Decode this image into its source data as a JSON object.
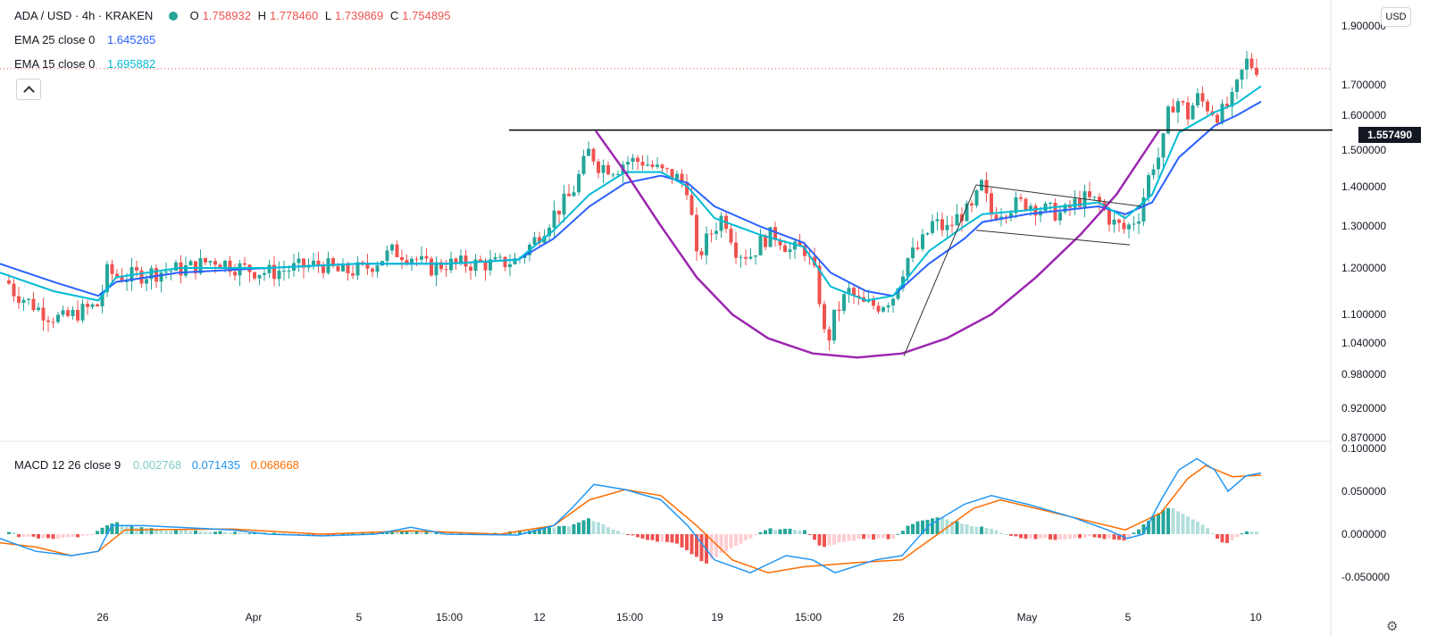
{
  "header": {
    "symbol": "ADA / USD · 4h · KRAKEN",
    "open_label": "O",
    "open": "1.758932",
    "high_label": "H",
    "high": "1.778460",
    "low_label": "L",
    "low": "1.739869",
    "close_label": "C",
    "close": "1.754895",
    "status_color": "#26a69a"
  },
  "indicators": {
    "ema25": {
      "label": "EMA 25 close 0",
      "value": "1.645265",
      "color": "#2962ff"
    },
    "ema15": {
      "label": "EMA 15 close 0",
      "value": "1.695882",
      "color": "#00bcd4"
    },
    "macd": {
      "label": "MACD 12 26 close 9",
      "hist": "0.002768",
      "macd": "0.071435",
      "signal": "0.068668",
      "hist_color": "#80cbc4",
      "macd_color": "#2196f3",
      "signal_color": "#ff6d00"
    }
  },
  "axis": {
    "currency": "USD",
    "current_price": "1.557490"
  },
  "icons": {
    "collapse": "chevron-up-icon",
    "settings": "gear-icon"
  },
  "colors": {
    "up": "#26a69a",
    "down": "#ef5350",
    "cup": "#9c27b0"
  },
  "chart_data": [
    {
      "type": "candlestick",
      "title": "ADA / USD · 4h · KRAKEN",
      "ylim": [
        0.86,
        1.92
      ],
      "y_ticks": [
        "1.900000",
        "1.700000",
        "1.600000",
        "1.500000",
        "1.400000",
        "1.300000",
        "1.200000",
        "1.100000",
        "1.040000",
        "0.980000",
        "0.920000",
        "0.870000"
      ],
      "x_ticks": [
        "26",
        "Apr",
        "5",
        "15:00",
        "12",
        "15:00",
        "19",
        "15:00",
        "26",
        "May",
        "5",
        "10"
      ],
      "series_path": [
        [
          0,
          1.2
        ],
        [
          15,
          1.15
        ],
        [
          30,
          1.13
        ],
        [
          52,
          1.1
        ],
        [
          70,
          1.09
        ],
        [
          95,
          1.11
        ],
        [
          110,
          1.12
        ],
        [
          120,
          1.19
        ],
        [
          140,
          1.18
        ],
        [
          170,
          1.19
        ],
        [
          210,
          1.2
        ],
        [
          240,
          1.22
        ],
        [
          270,
          1.2
        ],
        [
          300,
          1.19
        ],
        [
          330,
          1.2
        ],
        [
          360,
          1.21
        ],
        [
          380,
          1.19
        ],
        [
          410,
          1.2
        ],
        [
          440,
          1.24
        ],
        [
          460,
          1.23
        ],
        [
          480,
          1.2
        ],
        [
          500,
          1.21
        ],
        [
          530,
          1.21
        ],
        [
          560,
          1.21
        ],
        [
          580,
          1.22
        ],
        [
          600,
          1.27
        ],
        [
          620,
          1.33
        ],
        [
          640,
          1.38
        ],
        [
          660,
          1.5
        ],
        [
          670,
          1.46
        ],
        [
          690,
          1.45
        ],
        [
          700,
          1.47
        ],
        [
          720,
          1.47
        ],
        [
          740,
          1.44
        ],
        [
          755,
          1.43
        ],
        [
          770,
          1.4
        ],
        [
          780,
          1.22
        ],
        [
          795,
          1.28
        ],
        [
          810,
          1.33
        ],
        [
          825,
          1.24
        ],
        [
          840,
          1.23
        ],
        [
          855,
          1.27
        ],
        [
          870,
          1.28
        ],
        [
          885,
          1.24
        ],
        [
          900,
          1.25
        ],
        [
          915,
          1.17
        ],
        [
          925,
          1.03
        ],
        [
          935,
          1.1
        ],
        [
          950,
          1.15
        ],
        [
          965,
          1.12
        ],
        [
          985,
          1.12
        ],
        [
          1000,
          1.14
        ],
        [
          1015,
          1.22
        ],
        [
          1030,
          1.25
        ],
        [
          1045,
          1.31
        ],
        [
          1060,
          1.29
        ],
        [
          1075,
          1.33
        ],
        [
          1090,
          1.34
        ],
        [
          1098,
          1.41
        ],
        [
          1110,
          1.33
        ],
        [
          1130,
          1.35
        ],
        [
          1150,
          1.36
        ],
        [
          1170,
          1.34
        ],
        [
          1190,
          1.33
        ],
        [
          1210,
          1.37
        ],
        [
          1230,
          1.36
        ],
        [
          1245,
          1.31
        ],
        [
          1260,
          1.29
        ],
        [
          1275,
          1.33
        ],
        [
          1290,
          1.46
        ],
        [
          1300,
          1.49
        ],
        [
          1310,
          1.63
        ],
        [
          1320,
          1.65
        ],
        [
          1330,
          1.6
        ],
        [
          1340,
          1.66
        ],
        [
          1355,
          1.62
        ],
        [
          1365,
          1.6
        ],
        [
          1380,
          1.65
        ],
        [
          1395,
          1.78
        ],
        [
          1405,
          1.76
        ],
        [
          1412,
          1.755
        ]
      ],
      "ema15": [
        [
          0,
          1.19
        ],
        [
          60,
          1.15
        ],
        [
          110,
          1.13
        ],
        [
          130,
          1.18
        ],
        [
          200,
          1.2
        ],
        [
          300,
          1.2
        ],
        [
          400,
          1.21
        ],
        [
          500,
          1.21
        ],
        [
          580,
          1.22
        ],
        [
          620,
          1.29
        ],
        [
          660,
          1.38
        ],
        [
          700,
          1.44
        ],
        [
          740,
          1.44
        ],
        [
          770,
          1.4
        ],
        [
          800,
          1.32
        ],
        [
          850,
          1.28
        ],
        [
          900,
          1.25
        ],
        [
          930,
          1.16
        ],
        [
          970,
          1.13
        ],
        [
          1000,
          1.14
        ],
        [
          1040,
          1.24
        ],
        [
          1080,
          1.3
        ],
        [
          1100,
          1.33
        ],
        [
          1150,
          1.34
        ],
        [
          1230,
          1.36
        ],
        [
          1260,
          1.32
        ],
        [
          1290,
          1.38
        ],
        [
          1320,
          1.55
        ],
        [
          1360,
          1.61
        ],
        [
          1385,
          1.64
        ],
        [
          1412,
          1.696
        ]
      ],
      "ema25": [
        [
          0,
          1.21
        ],
        [
          60,
          1.17
        ],
        [
          110,
          1.14
        ],
        [
          130,
          1.17
        ],
        [
          200,
          1.19
        ],
        [
          300,
          1.2
        ],
        [
          400,
          1.21
        ],
        [
          500,
          1.21
        ],
        [
          580,
          1.22
        ],
        [
          620,
          1.27
        ],
        [
          660,
          1.35
        ],
        [
          700,
          1.41
        ],
        [
          740,
          1.43
        ],
        [
          770,
          1.41
        ],
        [
          800,
          1.35
        ],
        [
          850,
          1.3
        ],
        [
          900,
          1.26
        ],
        [
          930,
          1.19
        ],
        [
          970,
          1.15
        ],
        [
          1000,
          1.14
        ],
        [
          1040,
          1.21
        ],
        [
          1080,
          1.27
        ],
        [
          1100,
          1.31
        ],
        [
          1150,
          1.33
        ],
        [
          1230,
          1.35
        ],
        [
          1260,
          1.33
        ],
        [
          1290,
          1.36
        ],
        [
          1320,
          1.48
        ],
        [
          1360,
          1.57
        ],
        [
          1385,
          1.6
        ],
        [
          1412,
          1.645
        ]
      ],
      "horizontal_line": {
        "x": [
          570,
          1492
        ],
        "y": 1.55749
      },
      "cup_path": [
        [
          667,
          1.555
        ],
        [
          700,
          1.44
        ],
        [
          740,
          1.3
        ],
        [
          780,
          1.18
        ],
        [
          820,
          1.1
        ],
        [
          860,
          1.05
        ],
        [
          910,
          1.02
        ],
        [
          960,
          1.012
        ],
        [
          1010,
          1.02
        ],
        [
          1060,
          1.05
        ],
        [
          1110,
          1.1
        ],
        [
          1160,
          1.18
        ],
        [
          1210,
          1.28
        ],
        [
          1250,
          1.38
        ],
        [
          1298,
          1.557
        ]
      ],
      "flag_lines": [
        {
          "points": [
            [
              1012,
              1.015
            ],
            [
              1093,
              1.405
            ]
          ]
        },
        {
          "points": [
            [
              1093,
              1.405
            ],
            [
              1278,
              1.35
            ]
          ]
        },
        {
          "points": [
            [
              1093,
              1.29
            ],
            [
              1265,
              1.255
            ]
          ]
        }
      ]
    },
    {
      "type": "macd",
      "title": "MACD 12 26 close 9",
      "ylim": [
        -0.056,
        0.104
      ],
      "y_ticks": [
        "0.100000",
        "0.050000",
        "0.000000",
        "-0.050000"
      ],
      "macd_path": [
        [
          0,
          -0.005
        ],
        [
          40,
          -0.02
        ],
        [
          80,
          -0.025
        ],
        [
          110,
          -0.02
        ],
        [
          125,
          0.01
        ],
        [
          160,
          0.01
        ],
        [
          260,
          0.005
        ],
        [
          300,
          0.0
        ],
        [
          360,
          -0.002
        ],
        [
          420,
          0.0
        ],
        [
          460,
          0.008
        ],
        [
          500,
          0.0
        ],
        [
          580,
          -0.001
        ],
        [
          620,
          0.01
        ],
        [
          640,
          0.03
        ],
        [
          665,
          0.058
        ],
        [
          700,
          0.052
        ],
        [
          740,
          0.04
        ],
        [
          770,
          0.01
        ],
        [
          800,
          -0.03
        ],
        [
          840,
          -0.045
        ],
        [
          880,
          -0.025
        ],
        [
          910,
          -0.03
        ],
        [
          935,
          -0.045
        ],
        [
          980,
          -0.03
        ],
        [
          1010,
          -0.025
        ],
        [
          1040,
          0.01
        ],
        [
          1080,
          0.035
        ],
        [
          1110,
          0.045
        ],
        [
          1150,
          0.035
        ],
        [
          1200,
          0.02
        ],
        [
          1240,
          0.005
        ],
        [
          1262,
          -0.005
        ],
        [
          1280,
          0.0
        ],
        [
          1300,
          0.04
        ],
        [
          1320,
          0.075
        ],
        [
          1340,
          0.088
        ],
        [
          1360,
          0.075
        ],
        [
          1375,
          0.05
        ],
        [
          1395,
          0.068
        ],
        [
          1412,
          0.0714
        ]
      ],
      "signal_path": [
        [
          0,
          -0.01
        ],
        [
          40,
          -0.015
        ],
        [
          80,
          -0.025
        ],
        [
          110,
          -0.02
        ],
        [
          140,
          0.005
        ],
        [
          260,
          0.006
        ],
        [
          360,
          0.0
        ],
        [
          460,
          0.004
        ],
        [
          560,
          0.0
        ],
        [
          620,
          0.01
        ],
        [
          660,
          0.04
        ],
        [
          700,
          0.052
        ],
        [
          740,
          0.045
        ],
        [
          780,
          0.01
        ],
        [
          820,
          -0.03
        ],
        [
          860,
          -0.045
        ],
        [
          900,
          -0.038
        ],
        [
          960,
          -0.033
        ],
        [
          1010,
          -0.03
        ],
        [
          1050,
          0.0
        ],
        [
          1090,
          0.03
        ],
        [
          1120,
          0.04
        ],
        [
          1200,
          0.02
        ],
        [
          1260,
          0.005
        ],
        [
          1300,
          0.025
        ],
        [
          1330,
          0.065
        ],
        [
          1350,
          0.08
        ],
        [
          1380,
          0.067
        ],
        [
          1412,
          0.0687
        ]
      ],
      "hist": [
        [
          20,
          -0.003
        ],
        [
          60,
          -0.005
        ],
        [
          100,
          -0.002
        ],
        [
          128,
          0.015
        ],
        [
          140,
          0.01
        ],
        [
          180,
          0.005
        ],
        [
          240,
          0.003
        ],
        [
          300,
          0.001
        ],
        [
          360,
          -0.001
        ],
        [
          420,
          0.002
        ],
        [
          460,
          0.004
        ],
        [
          500,
          0.0
        ],
        [
          560,
          0.001
        ],
        [
          600,
          0.006
        ],
        [
          640,
          0.01
        ],
        [
          660,
          0.018
        ],
        [
          700,
          0.0
        ],
        [
          720,
          -0.005
        ],
        [
          760,
          -0.012
        ],
        [
          790,
          -0.034
        ],
        [
          820,
          -0.015
        ],
        [
          860,
          0.006
        ],
        [
          900,
          0.005
        ],
        [
          920,
          -0.015
        ],
        [
          960,
          -0.006
        ],
        [
          1000,
          -0.005
        ],
        [
          1020,
          0.012
        ],
        [
          1050,
          0.02
        ],
        [
          1080,
          0.012
        ],
        [
          1110,
          0.006
        ],
        [
          1140,
          -0.004
        ],
        [
          1180,
          -0.006
        ],
        [
          1220,
          -0.003
        ],
        [
          1260,
          -0.008
        ],
        [
          1290,
          0.02
        ],
        [
          1310,
          0.032
        ],
        [
          1330,
          0.02
        ],
        [
          1350,
          0.01
        ],
        [
          1370,
          -0.012
        ],
        [
          1395,
          0.003
        ],
        [
          1412,
          0.0028
        ]
      ]
    }
  ]
}
